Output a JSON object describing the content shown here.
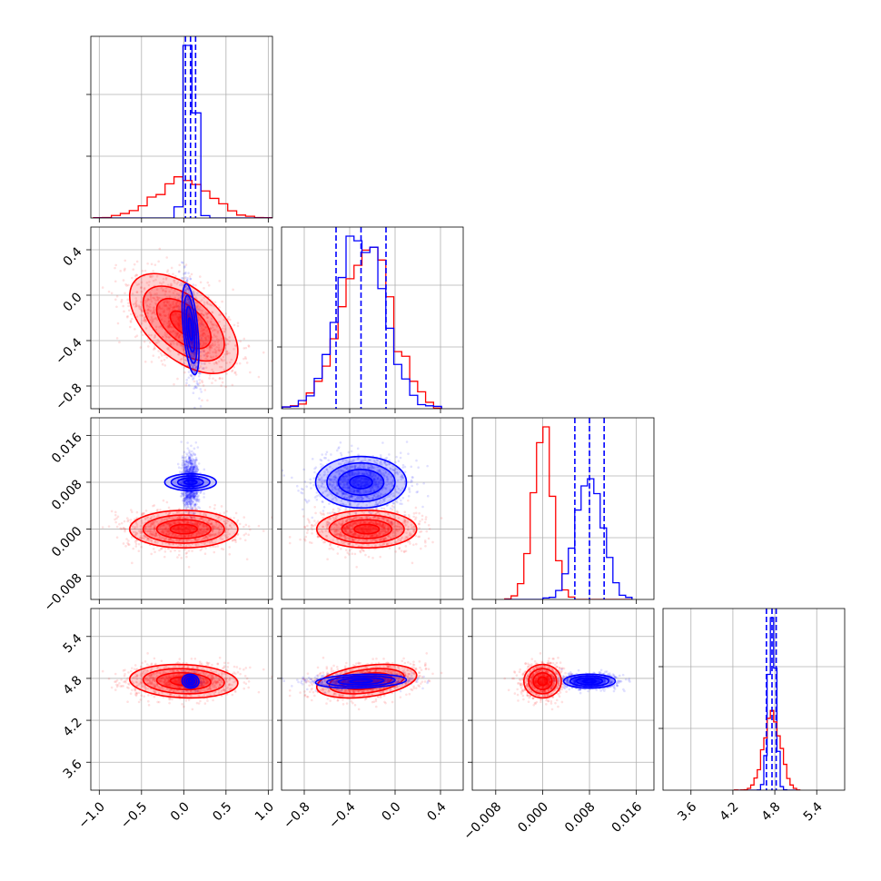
{
  "colors": {
    "red": "#ff0000",
    "blue": "#0000ff",
    "grid": "#b0b0b0",
    "axis": "#000000"
  },
  "chart_data": {
    "type": "corner",
    "grid": true,
    "parameters": [
      {
        "range": [
          -1.1,
          1.05
        ],
        "ticks": [
          -1.0,
          -0.5,
          0.0,
          0.5,
          1.0
        ],
        "tick_labels": [
          "−1.0",
          "−0.5",
          "0.0",
          "0.5",
          "1.0"
        ]
      },
      {
        "range": [
          -1.0,
          0.6
        ],
        "ticks": [
          -0.8,
          -0.4,
          0.0,
          0.4
        ],
        "tick_labels": [
          "−0.8",
          "−0.4",
          "0.0",
          "0.4"
        ]
      },
      {
        "range": [
          -0.012,
          0.019
        ],
        "ticks": [
          -0.008,
          0.0,
          0.008,
          0.016
        ],
        "tick_labels": [
          "−0.008",
          "0.000",
          "0.008",
          "0.016"
        ]
      },
      {
        "range": [
          3.2,
          5.8
        ],
        "ticks": [
          3.6,
          4.2,
          4.8,
          5.4
        ],
        "tick_labels": [
          "3.6",
          "4.2",
          "4.8",
          "5.4"
        ]
      }
    ],
    "series": [
      {
        "color": "red",
        "mean": [
          0.0,
          -0.25,
          0.0,
          4.76
        ],
        "std": [
          0.32,
          0.22,
          0.0016,
          0.12
        ],
        "corr01": -0.55,
        "corr13": 0.35
      },
      {
        "color": "blue",
        "mean": [
          0.08,
          -0.3,
          0.008,
          4.76
        ],
        "std": [
          0.05,
          0.2,
          0.0022,
          0.05
        ],
        "corr01": -0.5,
        "corr13": 0.2,
        "quantiles": [
          [
            0.02,
            0.08,
            0.14
          ],
          [
            -0.52,
            -0.3,
            -0.08
          ],
          [
            0.0055,
            0.008,
            0.0105
          ],
          [
            4.68,
            4.76,
            4.82
          ]
        ]
      }
    ]
  }
}
